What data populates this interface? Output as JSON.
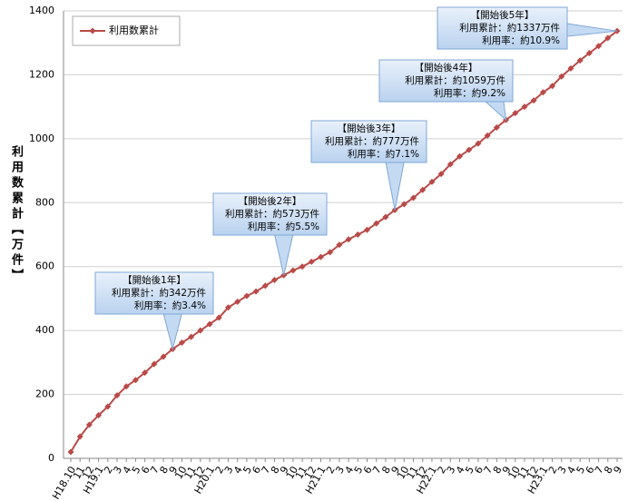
{
  "chart_data": {
    "type": "line",
    "y_label": "利用数累計【万件】",
    "categories": [
      "H18.10",
      "11",
      "12",
      "H19.1",
      "2",
      "3",
      "4",
      "5",
      "6",
      "7",
      "8",
      "9",
      "10",
      "11",
      "12",
      "H20.1",
      "2",
      "3",
      "4",
      "5",
      "6",
      "7",
      "8",
      "9",
      "10",
      "11",
      "12",
      "H21.1",
      "2",
      "3",
      "4",
      "5",
      "6",
      "7",
      "8",
      "9",
      "10",
      "11",
      "12",
      "H22.1",
      "2",
      "3",
      "4",
      "5",
      "6",
      "7",
      "8",
      "9",
      "10",
      "11",
      "12",
      "H23.1",
      "2",
      "3",
      "4",
      "5",
      "6",
      "7",
      "8",
      "9"
    ],
    "series": [
      {
        "name": "利用数累計",
        "color": "#b94a48",
        "values": [
          20,
          68,
          105,
          135,
          162,
          197,
          225,
          245,
          268,
          295,
          318,
          342,
          362,
          380,
          400,
          420,
          440,
          472,
          490,
          508,
          522,
          540,
          558,
          573,
          588,
          600,
          615,
          630,
          645,
          668,
          685,
          700,
          715,
          735,
          755,
          777,
          795,
          815,
          840,
          865,
          890,
          920,
          945,
          965,
          985,
          1010,
          1035,
          1059,
          1080,
          1100,
          1120,
          1145,
          1165,
          1195,
          1220,
          1245,
          1268,
          1290,
          1315,
          1337
        ]
      }
    ],
    "ylim": [
      0,
      1400
    ],
    "yticks": [
      0,
      200,
      400,
      600,
      800,
      1000,
      1200,
      1400
    ],
    "grid": true,
    "legend": "top-left",
    "annotations": [
      {
        "lines": [
          "【開始後1年】",
          "利用累計：約342万件",
          "利用率：約3.4%"
        ]
      },
      {
        "lines": [
          "【開始後2年】",
          "利用累計：約573万件",
          "利用率：約5.5%"
        ]
      },
      {
        "lines": [
          "【開始後3年】",
          "利用累計：約777万件",
          "利用率：約7.1%"
        ]
      },
      {
        "lines": [
          "【開始後4年】",
          "利用累計：約1059万件",
          "利用率：約9.2%"
        ]
      },
      {
        "lines": [
          "【開始後5年】",
          "利用累計：約1337万件",
          "利用率：約10.9%"
        ]
      }
    ]
  }
}
